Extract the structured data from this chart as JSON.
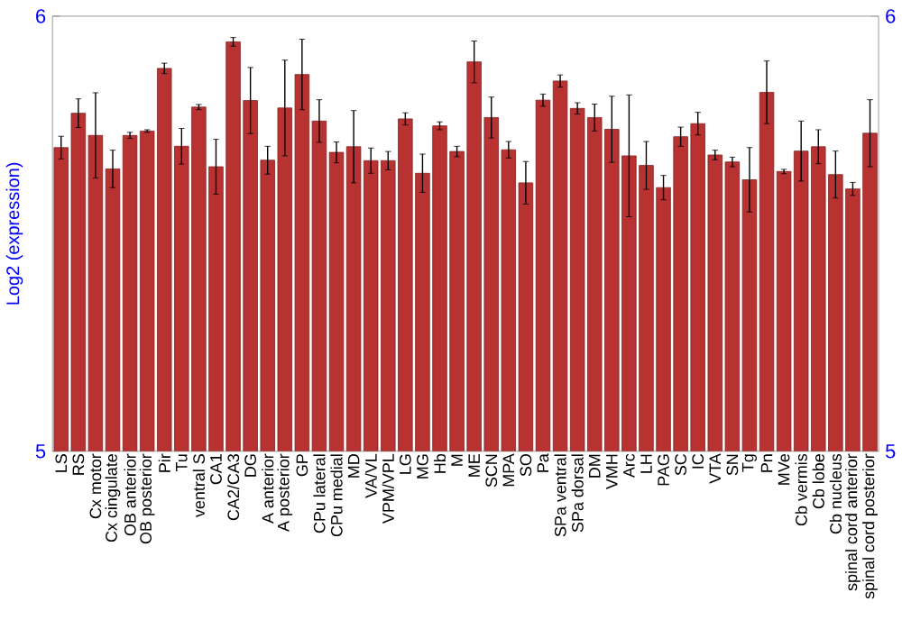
{
  "chart_data": {
    "type": "bar",
    "ylabel": "Log2 (expression)",
    "color": "#b83232",
    "categories": [
      "LS",
      "RS",
      "Cx motor",
      "Cx cingulate",
      "OB anterior",
      "OB posterior",
      "Pir",
      "Tu",
      "ventral S",
      "CA1",
      "CA2/CA3",
      "DG",
      "A anterior",
      "A posterior",
      "GP",
      "CPu lateral",
      "CPu medial",
      "MD",
      "VA/VL",
      "VPM/VPL",
      "LG",
      "MG",
      "Hb",
      "M",
      "ME",
      "SCN",
      "MPA",
      "SO",
      "Pa",
      "SPa ventral",
      "SPa dorsal",
      "DM",
      "VMH",
      "Arc",
      "LH",
      "PAG",
      "SC",
      "IC",
      "VTA",
      "SN",
      "Tg",
      "Pn",
      "MVe",
      "Cb vermis",
      "Cb lobe",
      "Cb nucleus",
      "spinal cord anterior",
      "spinal cord posterior"
    ],
    "values": [
      5.698,
      5.777,
      5.726,
      5.649,
      5.726,
      5.736,
      5.88,
      5.701,
      5.791,
      5.654,
      5.941,
      5.806,
      5.669,
      5.789,
      5.866,
      5.759,
      5.687,
      5.7,
      5.668,
      5.668,
      5.764,
      5.639,
      5.748,
      5.689,
      5.895,
      5.767,
      5.693,
      5.617,
      5.807,
      5.851,
      5.788,
      5.767,
      5.74,
      5.679,
      5.657,
      5.606,
      5.723,
      5.753,
      5.681,
      5.665,
      5.624,
      5.825,
      5.643,
      5.69,
      5.7,
      5.636,
      5.603,
      5.731
    ],
    "errors": [
      0.026,
      0.033,
      0.098,
      0.043,
      0.007,
      0.003,
      0.012,
      0.041,
      0.006,
      0.063,
      0.01,
      0.076,
      0.032,
      0.11,
      0.081,
      0.049,
      0.024,
      0.083,
      0.029,
      0.021,
      0.014,
      0.044,
      0.009,
      0.012,
      0.048,
      0.047,
      0.019,
      0.049,
      0.014,
      0.014,
      0.013,
      0.031,
      0.076,
      0.14,
      0.055,
      0.028,
      0.022,
      0.026,
      0.011,
      0.011,
      0.074,
      0.072,
      0.005,
      0.069,
      0.039,
      0.054,
      0.015,
      0.077
    ],
    "ylim": [
      5,
      6
    ],
    "yticks": [
      5,
      6
    ],
    "y2lim": [
      5,
      6
    ],
    "y2ticks": [
      5,
      6
    ]
  }
}
